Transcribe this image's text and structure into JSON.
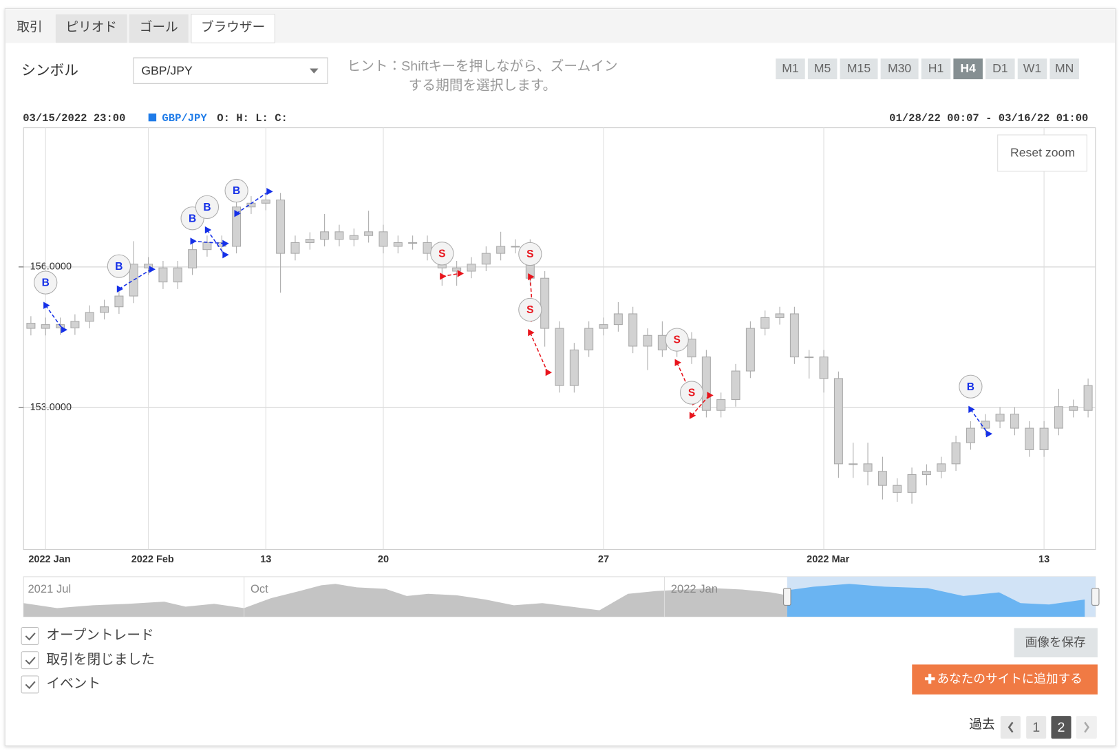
{
  "tabs": [
    "取引",
    "ピリオド",
    "ゴール",
    "ブラウザー"
  ],
  "active_tab": 3,
  "symbol_label": "シンボル",
  "symbol": "GBP/JPY",
  "hint": [
    "ヒント：Shiftキーを押しながら、ズームイン",
    "する期間を選択します。"
  ],
  "timeframes": [
    "M1",
    "M5",
    "M15",
    "M30",
    "H1",
    "H4",
    "D1",
    "W1",
    "MN"
  ],
  "active_timeframe": 5,
  "chart_data": {
    "type": "candlestick",
    "crosshair_time": "03/15/2022 23:00",
    "symbol": "GBP/JPY",
    "ohlc_label": "O: H: L: C:",
    "range": "01/28/22 00:07 - 03/16/22 01:00",
    "reset_zoom": "Reset zoom",
    "categories": [
      null,
      "2022 Jan",
      null,
      null,
      null,
      null,
      null,
      null,
      "2022 Feb",
      null,
      null,
      null,
      null,
      null,
      null,
      null,
      "13",
      null,
      null,
      null,
      null,
      null,
      null,
      null,
      "20",
      null,
      null,
      null,
      null,
      null,
      null,
      null,
      null,
      null,
      null,
      null,
      null,
      null,
      null,
      "27",
      null,
      null,
      null,
      null,
      null,
      null,
      null,
      null,
      null,
      null,
      null,
      null,
      null,
      null,
      "2022 Mar",
      null,
      null,
      null,
      null,
      null,
      null,
      null,
      null,
      null,
      null,
      null,
      null,
      null,
      null,
      "13",
      null,
      null,
      null
    ],
    "series": [
      {
        "name": "GBP/JPY",
        "color": "#d2d2d2",
        "stroke": "#a8a8a8",
        "open": [
          154.8,
          154.69,
          154.77,
          154.7,
          154.84,
          155.03,
          155.15,
          155.38,
          156.06,
          155.98,
          155.68,
          155.98,
          156.37,
          156.52,
          156.44,
          157.28,
          157.36,
          157.43,
          156.29,
          156.52,
          156.59,
          156.75,
          156.59,
          156.67,
          156.75,
          156.44,
          156.52,
          156.52,
          156.29,
          155.98,
          155.91,
          156.06,
          156.29,
          156.44,
          156.44,
          155.76,
          154.69,
          153.47,
          154.23,
          154.69,
          154.77,
          155.0,
          154.31,
          154.54,
          154.23,
          154.46,
          154.08,
          152.94,
          153.17,
          153.78,
          154.69,
          154.92,
          155.0,
          154.08,
          154.08,
          153.62,
          151.8,
          151.8,
          151.64,
          151.34,
          151.19,
          151.57,
          151.64,
          151.8,
          152.25,
          152.56,
          152.71,
          152.86,
          152.56,
          152.1,
          152.56,
          153.02,
          152.94
        ],
        "high": [
          154.95,
          154.92,
          154.92,
          154.99,
          155.18,
          155.3,
          155.53,
          156.55,
          156.21,
          156.13,
          156.13,
          156.52,
          156.67,
          156.67,
          157.43,
          157.51,
          157.58,
          157.58,
          156.67,
          156.74,
          157.13,
          156.9,
          156.82,
          157.2,
          156.9,
          156.67,
          156.67,
          156.67,
          156.44,
          156.13,
          156.21,
          156.44,
          156.75,
          156.59,
          156.59,
          155.91,
          154.84,
          154.38,
          154.84,
          154.92,
          155.25,
          155.15,
          154.69,
          154.84,
          154.69,
          154.61,
          154.23,
          153.32,
          153.93,
          154.84,
          155.07,
          155.15,
          155.15,
          154.23,
          154.23,
          153.77,
          152.25,
          152.25,
          151.95,
          151.49,
          151.72,
          151.79,
          151.95,
          152.4,
          152.71,
          152.86,
          153.01,
          153.01,
          152.71,
          152.71,
          153.4,
          153.17,
          153.62
        ],
        "low": [
          154.54,
          154.54,
          154.55,
          154.55,
          154.69,
          154.88,
          155.0,
          155.23,
          155.83,
          155.53,
          155.53,
          155.83,
          156.22,
          156.29,
          156.29,
          157.13,
          157.21,
          155.45,
          156.14,
          156.37,
          156.44,
          156.44,
          156.44,
          156.52,
          156.29,
          156.29,
          156.37,
          156.14,
          155.6,
          155.6,
          155.76,
          155.91,
          156.14,
          156.29,
          155.61,
          154.3,
          153.32,
          153.32,
          154.08,
          154.54,
          154.62,
          154.16,
          153.8,
          154.08,
          154.08,
          153.93,
          152.79,
          152.79,
          153.02,
          153.63,
          154.54,
          154.77,
          153.93,
          153.62,
          153.32,
          151.5,
          151.5,
          151.34,
          151.04,
          150.99,
          150.95,
          151.34,
          151.49,
          151.65,
          152.1,
          152.41,
          152.56,
          152.41,
          151.95,
          151.95,
          152.41,
          152.79,
          152.79
        ],
        "close": [
          154.69,
          154.77,
          154.7,
          154.84,
          155.03,
          155.15,
          155.38,
          156.06,
          155.98,
          155.68,
          155.98,
          156.37,
          156.52,
          156.44,
          157.28,
          157.36,
          157.43,
          156.29,
          156.52,
          156.59,
          156.75,
          156.59,
          156.67,
          156.75,
          156.44,
          156.52,
          156.52,
          156.29,
          155.98,
          155.91,
          156.06,
          156.29,
          156.44,
          156.44,
          155.76,
          154.69,
          153.47,
          154.23,
          154.69,
          154.77,
          155.0,
          154.31,
          154.54,
          154.23,
          154.46,
          154.08,
          152.94,
          153.17,
          153.78,
          154.69,
          154.92,
          155.0,
          154.08,
          154.08,
          153.62,
          151.8,
          151.8,
          151.64,
          151.34,
          151.19,
          151.57,
          151.64,
          151.8,
          152.25,
          152.56,
          152.71,
          152.86,
          152.56,
          152.1,
          152.56,
          153.02,
          152.94,
          153.47
        ]
      }
    ],
    "ylim": [
      149.97,
      158.97
    ],
    "yticks": [
      {
        "value": 153,
        "label": "153.0000"
      },
      {
        "value": 156,
        "label": "156.0000"
      }
    ],
    "grid": true,
    "trade_colors": {
      "B": "#1530e8",
      "S": "#e8141c"
    },
    "trades": [
      {
        "side": "B",
        "open_index": 1,
        "open_price": 155.18,
        "close_index": 2,
        "close_price": 154.66
      },
      {
        "side": "B",
        "open_index": 6,
        "open_price": 155.53,
        "close_index": 8,
        "close_price": 155.95
      },
      {
        "side": "B",
        "open_index": 11,
        "open_price": 156.55,
        "close_index": 13,
        "close_price": 156.5
      },
      {
        "side": "B",
        "open_index": 12,
        "open_price": 156.79,
        "close_index": 13,
        "close_price": 156.26
      },
      {
        "side": "B",
        "open_index": 14,
        "open_price": 157.14,
        "close_index": 16,
        "close_price": 157.61
      },
      {
        "side": "S",
        "open_index": 28,
        "open_price": 155.8,
        "close_index": 29,
        "close_price": 155.86
      },
      {
        "side": "S",
        "open_index": 34,
        "open_price": 155.79,
        "close_index": 34,
        "close_price": 154.9
      },
      {
        "side": "S",
        "open_index": 34,
        "open_price": 154.6,
        "close_index": 35,
        "close_price": 153.75
      },
      {
        "side": "S",
        "open_index": 44,
        "open_price": 153.96,
        "close_index": 45,
        "close_price": 153.12
      },
      {
        "side": "S",
        "open_index": 45,
        "open_price": 152.83,
        "close_index": 46,
        "close_price": 153.26
      },
      {
        "side": "B",
        "open_index": 64,
        "open_price": 152.96,
        "close_index": 65,
        "close_price": 152.44
      }
    ],
    "navigator": {
      "labels": [
        "2021 Jul",
        "Oct",
        "2022 Jan"
      ]
    }
  },
  "checkboxes": [
    "オープントレード",
    "取引を閉じました",
    "イベント"
  ],
  "save_image": "画像を保存",
  "add_button": "あなたのサイトに追加する",
  "pagination": {
    "label": "過去",
    "pages": [
      1,
      2
    ],
    "current": 1
  }
}
